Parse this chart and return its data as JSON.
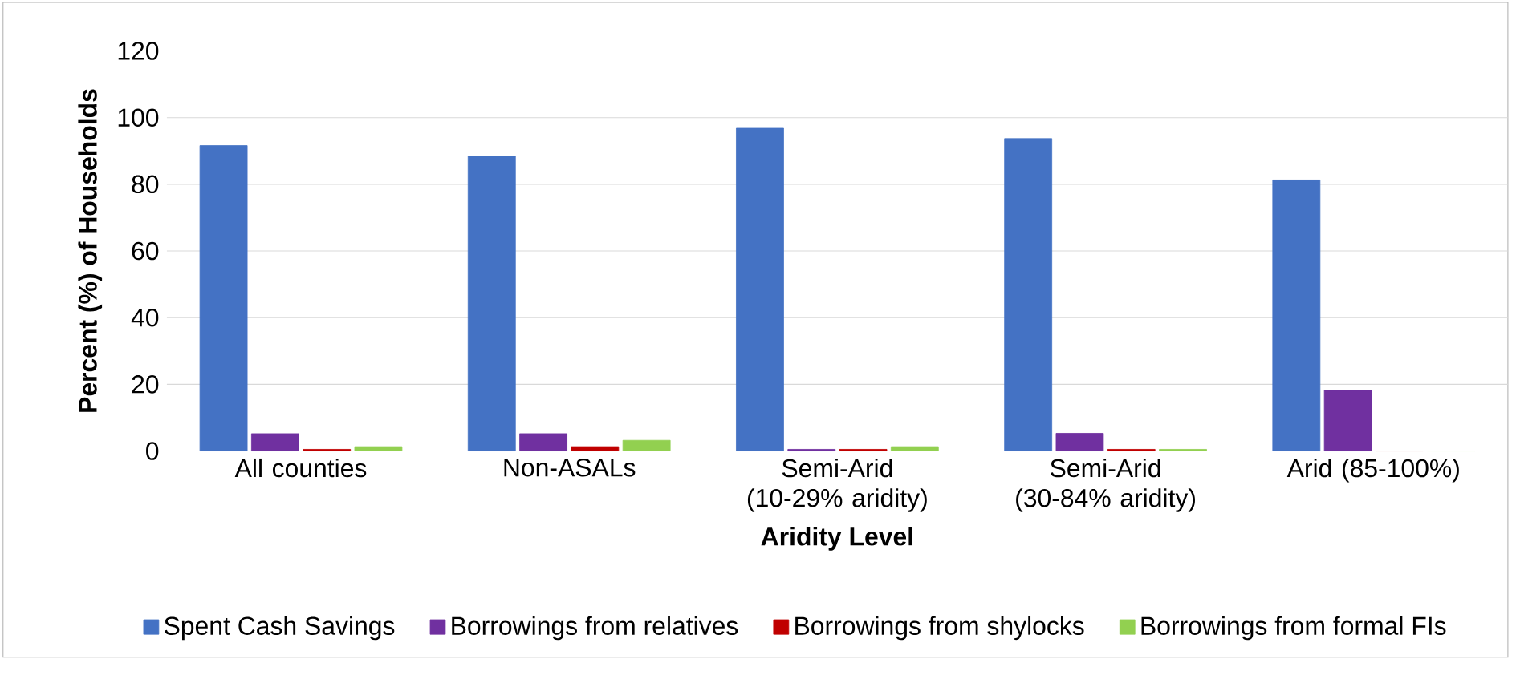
{
  "chart_data": {
    "type": "bar",
    "xlabel": "Aridity Level",
    "ylabel": "Percent (%) of Households",
    "categories": [
      "All counties",
      "Non-ASALs",
      "Semi-Arid (10-29% aridity)",
      "Semi-Arid (30-84% aridity)",
      "Arid (85-100%)"
    ],
    "series": [
      {
        "name": "Spent Cash Savings",
        "color": "#4472c4",
        "values": [
          91.6,
          88.4,
          96.8,
          93.7,
          81.3
        ]
      },
      {
        "name": "Borrowings from relatives",
        "color": "#7030a0",
        "values": [
          5.2,
          5.2,
          0.5,
          5.3,
          18.2
        ]
      },
      {
        "name": "Borrowings from shylocks",
        "color": "#c00000",
        "values": [
          0.5,
          1.3,
          0.5,
          0.5,
          0
        ]
      },
      {
        "name": "Borrowings from formal FIs",
        "color": "#92d050",
        "values": [
          1.3,
          3.2,
          1.3,
          0.5,
          0
        ]
      }
    ],
    "ylim": [
      0,
      120
    ],
    "yticks": [
      0,
      20,
      40,
      60,
      80,
      100,
      120
    ],
    "grid": "y",
    "legend": "bottom"
  }
}
